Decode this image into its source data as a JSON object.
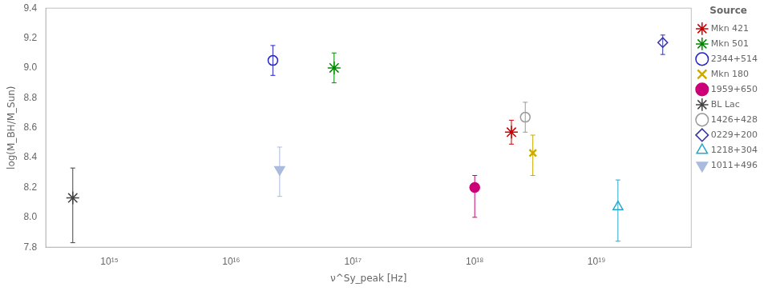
{
  "chart_data": {
    "type": "scatter",
    "xlabel": "ν^Sy_peak [Hz]",
    "ylabel": "log(M_BH/M_Sun)",
    "legend_title": "Source",
    "legend": "right",
    "grid": false,
    "log": "x",
    "xlim": [
      300000000000000.0,
      6e+19
    ],
    "xticks": [
      {
        "value": 1000000000000000.0,
        "label": "10¹⁵"
      },
      {
        "value": 1e+16,
        "label": "10¹⁶"
      },
      {
        "value": 1e+17,
        "label": "10¹⁷"
      },
      {
        "value": 1e+18,
        "label": "10¹⁸"
      },
      {
        "value": 1e+19,
        "label": "10¹⁹"
      }
    ],
    "ylim": [
      7.8,
      9.4
    ],
    "yticks": [
      7.8,
      {
        "value": 8,
        "label": "8.0"
      },
      8.2,
      8.4,
      8.6,
      8.8,
      {
        "value": 9,
        "label": "9.0"
      },
      9.2,
      9.4
    ],
    "series": [
      {
        "name": "Mkn 421",
        "color": "#cc0000",
        "marker": "star",
        "x": [
          2e+18
        ],
        "values": [
          8.57
        ],
        "yerr_lo": [
          0.08
        ],
        "yerr_hi": [
          0.08
        ]
      },
      {
        "name": "Mkn 501",
        "color": "#008800",
        "marker": "star",
        "x": [
          7e+16
        ],
        "values": [
          9.0
        ],
        "yerr_lo": [
          0.1
        ],
        "yerr_hi": [
          0.1
        ]
      },
      {
        "name": "2344+514",
        "color": "#2222cc",
        "marker": "circle-open",
        "x": [
          2.2e+16
        ],
        "values": [
          9.05
        ],
        "yerr_lo": [
          0.1
        ],
        "yerr_hi": [
          0.1
        ]
      },
      {
        "name": "Mkn 180",
        "color": "#ccaa00",
        "marker": "x",
        "x": [
          3e+18
        ],
        "values": [
          8.43
        ],
        "yerr_lo": [
          0.15
        ],
        "yerr_hi": [
          0.12
        ]
      },
      {
        "name": "1959+650",
        "color": "#cc0077",
        "marker": "circle",
        "x": [
          1e+18
        ],
        "values": [
          8.2
        ],
        "yerr_lo": [
          0.2
        ],
        "yerr_hi": [
          0.08
        ]
      },
      {
        "name": "BL Lac",
        "color": "#444444",
        "marker": "star",
        "x": [
          500000000000000.0
        ],
        "values": [
          8.13
        ],
        "yerr_lo": [
          0.3
        ],
        "yerr_hi": [
          0.2
        ]
      },
      {
        "name": "1426+428",
        "color": "#999999",
        "marker": "circle-open",
        "x": [
          2.6e+18
        ],
        "values": [
          8.67
        ],
        "yerr_lo": [
          0.1
        ],
        "yerr_hi": [
          0.1
        ]
      },
      {
        "name": "0229+200",
        "color": "#3333aa",
        "marker": "diamond-open",
        "x": [
          3.5e+19
        ],
        "values": [
          9.17
        ],
        "yerr_lo": [
          0.08
        ],
        "yerr_hi": [
          0.05
        ]
      },
      {
        "name": "1218+304",
        "color": "#22aacc",
        "marker": "triangle-up-open",
        "x": [
          1.5e+19
        ],
        "values": [
          8.07
        ],
        "yerr_lo": [
          0.23
        ],
        "yerr_hi": [
          0.18
        ]
      },
      {
        "name": "1011+496",
        "color": "#aabbdd",
        "marker": "triangle-down",
        "x": [
          2.5e+16
        ],
        "values": [
          8.32
        ],
        "yerr_lo": [
          0.18
        ],
        "yerr_hi": [
          0.15
        ]
      }
    ]
  }
}
